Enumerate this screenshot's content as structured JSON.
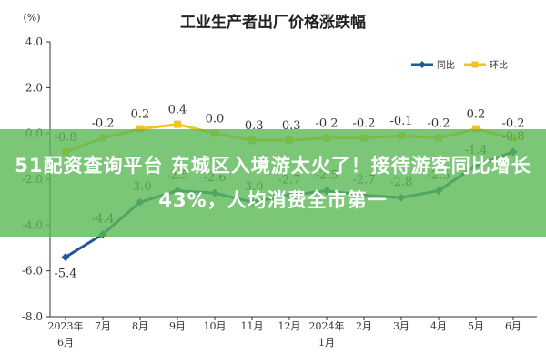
{
  "colors": {
    "yoy": "#1f5a96",
    "mom": "#f2c324",
    "banner": "#5ab955"
  },
  "banner": {
    "text": "51配资查询平台 东城区入境游太火了！接待游客同比增长43%，人均消费全市第一"
  },
  "chart_data": {
    "type": "line",
    "title": "工业生产者出厂价格涨跌幅",
    "unit_label": "(%)",
    "ylim": [
      -8.0,
      4.0
    ],
    "yticks": [
      "4.0",
      "2.0",
      "0.0",
      "-2.0",
      "-4.0",
      "-6.0",
      "-8.0"
    ],
    "categories": [
      [
        "2023年",
        "6月"
      ],
      [
        "7月"
      ],
      [
        "8月"
      ],
      [
        "9月"
      ],
      [
        "10月"
      ],
      [
        "11月"
      ],
      [
        "12月"
      ],
      [
        "2024年",
        "1月"
      ],
      [
        "2月"
      ],
      [
        "3月"
      ],
      [
        "4月"
      ],
      [
        "5月"
      ],
      [
        "6月"
      ]
    ],
    "legend_position": "top-right",
    "grid": false,
    "series": [
      {
        "name": "同比",
        "color": "#1f5a96",
        "values": [
          -5.4,
          -4.4,
          -3.0,
          -2.5,
          -2.6,
          -3.0,
          -2.7,
          -2.5,
          -2.7,
          -2.8,
          -2.5,
          -1.4,
          -0.8
        ],
        "labels": [
          "-5.4",
          "-4.4",
          "-3.0",
          "-2.5",
          "-2.6",
          "-3.0",
          "-2.7",
          "-2.5",
          "-2.7",
          "-2.8",
          "-2.5",
          "-1.4",
          "-0.8"
        ]
      },
      {
        "name": "环比",
        "color": "#f2c324",
        "values": [
          -0.8,
          -0.2,
          0.2,
          0.4,
          0.0,
          -0.3,
          -0.3,
          -0.2,
          -0.2,
          -0.1,
          -0.2,
          0.2,
          -0.2
        ],
        "labels": [
          "-0.8",
          "-0.2",
          "0.2",
          "0.4",
          "0.0",
          "-0.3",
          "-0.3",
          "-0.2",
          "-0.2",
          "-0.1",
          "-0.2",
          "0.2",
          "-0.2"
        ]
      }
    ]
  }
}
